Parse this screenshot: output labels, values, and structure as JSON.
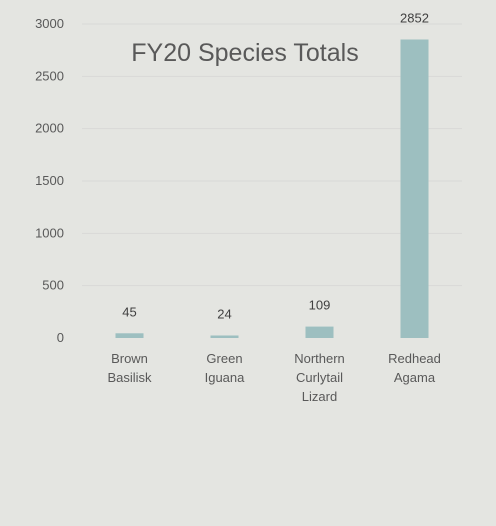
{
  "chart_data": {
    "type": "bar",
    "title": "FY20 Species Totals",
    "xlabel": "",
    "ylabel": "",
    "categories": [
      [
        "Brown",
        "Basilisk"
      ],
      [
        "Green",
        "Iguana"
      ],
      [
        "Northern",
        "Curlytail",
        "Lizard"
      ],
      [
        "Redhead",
        "Agama"
      ]
    ],
    "values": [
      45,
      24,
      109,
      2852
    ],
    "data_labels": [
      "45",
      "24",
      "109",
      "2852"
    ],
    "ylim": [
      0,
      3000
    ],
    "yticks": [
      0,
      500,
      1000,
      1500,
      2000,
      2500,
      3000
    ],
    "ytick_labels": [
      "0",
      "500",
      "1000",
      "1500",
      "2000",
      "2500",
      "3000"
    ],
    "grid": true,
    "legend": "none",
    "colors": {
      "bar": "#9dbfc0",
      "background": "#e4e5e1",
      "gridline": "#d9d9d6",
      "text": "#595959"
    }
  }
}
